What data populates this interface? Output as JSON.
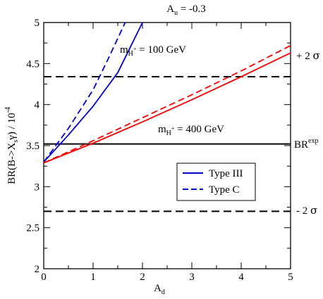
{
  "chart_data": {
    "type": "line",
    "title": {
      "main": "A",
      "sub": "u",
      "suffix": " = -0.3"
    },
    "xlabel": {
      "main": "A",
      "sub": "d"
    },
    "ylabel": {
      "main": "BR(B->X",
      "sub": "s",
      "mid": "γ) / 10",
      "sup": "-4"
    },
    "xlim": [
      0,
      5
    ],
    "ylim": [
      2,
      5
    ],
    "x_ticks": [
      "0",
      "1",
      "2",
      "3",
      "4",
      "5"
    ],
    "y_ticks": [
      "2",
      "2.5",
      "3",
      "3.5",
      "4",
      "4.5",
      "5"
    ],
    "grid": false,
    "series": [
      {
        "name": "Type III",
        "color": "#0000cc",
        "dash": "solid",
        "x": [
          0,
          0.5,
          1,
          1.5,
          2
        ],
        "y": [
          3.3,
          3.63,
          3.98,
          4.39,
          5.0
        ]
      },
      {
        "name": "Type C",
        "color": "#0000cc",
        "dash": "dashed",
        "x": [
          0,
          0.5,
          1,
          1.3,
          1.65
        ],
        "y": [
          3.3,
          3.71,
          4.18,
          4.55,
          5.0
        ]
      },
      {
        "color": "#ff0000",
        "dash": "solid",
        "x": [
          0,
          1,
          2,
          3,
          4,
          5
        ],
        "y": [
          3.29,
          3.53,
          3.79,
          4.06,
          4.34,
          4.63
        ]
      },
      {
        "color": "#ff0000",
        "dash": "dashed",
        "x": [
          0,
          1,
          2,
          3,
          4,
          5
        ],
        "y": [
          3.29,
          3.56,
          3.84,
          4.12,
          4.41,
          4.72
        ]
      }
    ],
    "reference_lines": [
      {
        "y": 4.34,
        "dash": "dashed",
        "label_pre": "+ 2 ",
        "label_greek": "σ"
      },
      {
        "y": 3.52,
        "dash": "solid",
        "label_main": "BR",
        "label_sup": "exp"
      },
      {
        "y": 2.7,
        "dash": "dashed",
        "label_pre": "- 2 ",
        "label_greek": "σ"
      }
    ],
    "annotations": [
      {
        "main": "m",
        "sub": "H",
        "subsup": "+",
        "rest": " = 100 GeV",
        "x": 1.55,
        "y": 4.6
      },
      {
        "main": "m",
        "sub": "H",
        "subsup": "+",
        "rest": " = 400 GeV",
        "x": 2.45,
        "y": 3.7
      }
    ],
    "legend": {
      "placement": "center-right"
    }
  }
}
